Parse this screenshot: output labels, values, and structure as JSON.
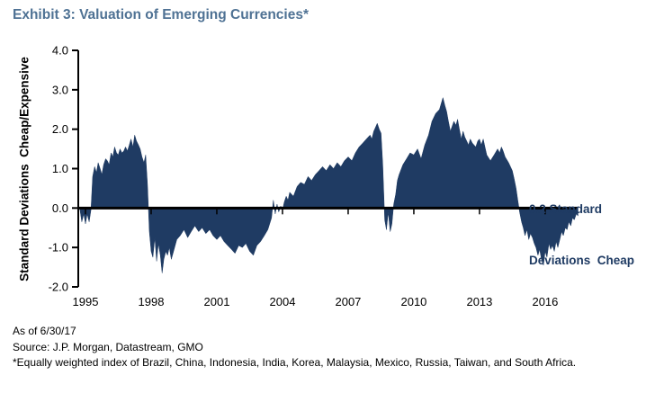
{
  "colors": {
    "title_blue": "#4F7294",
    "series_navy": "#1F3B63",
    "axis_black": "#000000"
  },
  "chart_data": {
    "type": "area",
    "title": "Exhibit 3: Valuation of Emerging Currencies*",
    "xlabel": "",
    "ylabel": "Standard Deviations  Cheap/Expensive",
    "ylim": [
      -2.0,
      4.0
    ],
    "x_ticks": [
      1995,
      1998,
      2001,
      2004,
      2007,
      2010,
      2013,
      2016
    ],
    "y_ticks": [
      4.0,
      3.0,
      2.0,
      1.0,
      0.0,
      -1.0,
      -2.0
    ],
    "y_tick_labels": [
      "4.0",
      "3.0",
      "2.0",
      "1.0",
      "0.0",
      "-1.0",
      "-2.0"
    ],
    "baseline": 0,
    "grid": false,
    "legend": false,
    "x_range": [
      1994.72,
      2017.5
    ],
    "annotation": {
      "line1": "0.2 Standard",
      "line2": "Deviations  Cheap"
    },
    "series": [
      {
        "name": "Valuation of emerging currencies (standard deviations cheap/expensive)",
        "points": [
          [
            1994.75,
            -0.05
          ],
          [
            1994.83,
            -0.35
          ],
          [
            1994.92,
            -0.15
          ],
          [
            1995.0,
            -0.4
          ],
          [
            1995.08,
            -0.15
          ],
          [
            1995.17,
            -0.35
          ],
          [
            1995.25,
            -0.05
          ],
          [
            1995.33,
            0.8
          ],
          [
            1995.42,
            1.05
          ],
          [
            1995.5,
            0.9
          ],
          [
            1995.58,
            1.15
          ],
          [
            1995.67,
            1.0
          ],
          [
            1995.75,
            0.85
          ],
          [
            1995.83,
            1.1
          ],
          [
            1995.92,
            1.25
          ],
          [
            1996.0,
            1.2
          ],
          [
            1996.08,
            1.1
          ],
          [
            1996.17,
            1.4
          ],
          [
            1996.25,
            1.3
          ],
          [
            1996.33,
            1.55
          ],
          [
            1996.42,
            1.4
          ],
          [
            1996.5,
            1.35
          ],
          [
            1996.58,
            1.5
          ],
          [
            1996.67,
            1.4
          ],
          [
            1996.75,
            1.45
          ],
          [
            1996.83,
            1.55
          ],
          [
            1996.92,
            1.45
          ],
          [
            1997.0,
            1.6
          ],
          [
            1997.08,
            1.75
          ],
          [
            1997.17,
            1.55
          ],
          [
            1997.25,
            1.85
          ],
          [
            1997.33,
            1.7
          ],
          [
            1997.42,
            1.6
          ],
          [
            1997.5,
            1.5
          ],
          [
            1997.58,
            1.3
          ],
          [
            1997.67,
            1.15
          ],
          [
            1997.75,
            1.35
          ],
          [
            1997.83,
            0.6
          ],
          [
            1997.92,
            -0.6
          ],
          [
            1998.0,
            -1.1
          ],
          [
            1998.08,
            -1.25
          ],
          [
            1998.17,
            -0.75
          ],
          [
            1998.25,
            -1.35
          ],
          [
            1998.33,
            -0.9
          ],
          [
            1998.42,
            -1.2
          ],
          [
            1998.5,
            -1.65
          ],
          [
            1998.58,
            -1.3
          ],
          [
            1998.67,
            -1.1
          ],
          [
            1998.75,
            -1.2
          ],
          [
            1998.83,
            -1.0
          ],
          [
            1998.92,
            -1.3
          ],
          [
            1999.0,
            -1.15
          ],
          [
            1999.17,
            -0.8
          ],
          [
            1999.33,
            -0.7
          ],
          [
            1999.5,
            -0.55
          ],
          [
            1999.67,
            -0.75
          ],
          [
            1999.83,
            -0.6
          ],
          [
            2000.0,
            -0.45
          ],
          [
            2000.17,
            -0.6
          ],
          [
            2000.33,
            -0.5
          ],
          [
            2000.5,
            -0.65
          ],
          [
            2000.67,
            -0.55
          ],
          [
            2000.83,
            -0.7
          ],
          [
            2001.0,
            -0.8
          ],
          [
            2001.17,
            -0.7
          ],
          [
            2001.33,
            -0.85
          ],
          [
            2001.5,
            -0.95
          ],
          [
            2001.67,
            -1.05
          ],
          [
            2001.83,
            -1.15
          ],
          [
            2002.0,
            -0.95
          ],
          [
            2002.17,
            -1.0
          ],
          [
            2002.33,
            -0.9
          ],
          [
            2002.5,
            -1.1
          ],
          [
            2002.67,
            -1.2
          ],
          [
            2002.83,
            -0.95
          ],
          [
            2003.0,
            -0.85
          ],
          [
            2003.17,
            -0.7
          ],
          [
            2003.33,
            -0.55
          ],
          [
            2003.5,
            -0.25
          ],
          [
            2003.58,
            0.2
          ],
          [
            2003.67,
            -0.15
          ],
          [
            2003.75,
            0.1
          ],
          [
            2003.83,
            -0.1
          ],
          [
            2003.92,
            0.05
          ],
          [
            2004.0,
            -0.05
          ],
          [
            2004.08,
            0.15
          ],
          [
            2004.17,
            0.3
          ],
          [
            2004.25,
            0.2
          ],
          [
            2004.33,
            0.4
          ],
          [
            2004.5,
            0.3
          ],
          [
            2004.67,
            0.55
          ],
          [
            2004.83,
            0.65
          ],
          [
            2005.0,
            0.6
          ],
          [
            2005.17,
            0.8
          ],
          [
            2005.33,
            0.7
          ],
          [
            2005.5,
            0.85
          ],
          [
            2005.67,
            0.95
          ],
          [
            2005.83,
            1.05
          ],
          [
            2006.0,
            0.95
          ],
          [
            2006.17,
            1.1
          ],
          [
            2006.33,
            1.0
          ],
          [
            2006.5,
            1.15
          ],
          [
            2006.67,
            1.05
          ],
          [
            2006.83,
            1.2
          ],
          [
            2007.0,
            1.3
          ],
          [
            2007.17,
            1.2
          ],
          [
            2007.33,
            1.4
          ],
          [
            2007.5,
            1.55
          ],
          [
            2007.67,
            1.65
          ],
          [
            2007.83,
            1.75
          ],
          [
            2008.0,
            1.85
          ],
          [
            2008.08,
            1.75
          ],
          [
            2008.17,
            1.95
          ],
          [
            2008.25,
            2.05
          ],
          [
            2008.33,
            2.15
          ],
          [
            2008.42,
            2.0
          ],
          [
            2008.5,
            1.9
          ],
          [
            2008.58,
            1.1
          ],
          [
            2008.67,
            -0.3
          ],
          [
            2008.75,
            -0.55
          ],
          [
            2008.83,
            -0.1
          ],
          [
            2008.92,
            -0.6
          ],
          [
            2009.0,
            -0.4
          ],
          [
            2009.08,
            0.1
          ],
          [
            2009.17,
            0.35
          ],
          [
            2009.25,
            0.7
          ],
          [
            2009.33,
            0.85
          ],
          [
            2009.5,
            1.1
          ],
          [
            2009.67,
            1.25
          ],
          [
            2009.83,
            1.4
          ],
          [
            2010.0,
            1.35
          ],
          [
            2010.17,
            1.5
          ],
          [
            2010.33,
            1.25
          ],
          [
            2010.5,
            1.6
          ],
          [
            2010.67,
            1.85
          ],
          [
            2010.83,
            2.2
          ],
          [
            2011.0,
            2.4
          ],
          [
            2011.17,
            2.5
          ],
          [
            2011.33,
            2.8
          ],
          [
            2011.42,
            2.6
          ],
          [
            2011.5,
            2.45
          ],
          [
            2011.58,
            2.2
          ],
          [
            2011.67,
            1.95
          ],
          [
            2011.83,
            2.2
          ],
          [
            2011.92,
            2.1
          ],
          [
            2012.0,
            2.25
          ],
          [
            2012.08,
            2.0
          ],
          [
            2012.17,
            1.75
          ],
          [
            2012.25,
            1.95
          ],
          [
            2012.33,
            1.8
          ],
          [
            2012.5,
            1.6
          ],
          [
            2012.58,
            1.75
          ],
          [
            2012.67,
            1.65
          ],
          [
            2012.83,
            1.55
          ],
          [
            2012.92,
            1.7
          ],
          [
            2013.0,
            1.75
          ],
          [
            2013.08,
            1.6
          ],
          [
            2013.17,
            1.75
          ],
          [
            2013.25,
            1.55
          ],
          [
            2013.33,
            1.35
          ],
          [
            2013.5,
            1.2
          ],
          [
            2013.67,
            1.35
          ],
          [
            2013.83,
            1.5
          ],
          [
            2013.92,
            1.4
          ],
          [
            2014.0,
            1.55
          ],
          [
            2014.08,
            1.45
          ],
          [
            2014.17,
            1.3
          ],
          [
            2014.33,
            1.15
          ],
          [
            2014.5,
            0.95
          ],
          [
            2014.58,
            0.75
          ],
          [
            2014.67,
            0.5
          ],
          [
            2014.75,
            0.2
          ],
          [
            2014.83,
            -0.1
          ],
          [
            2014.92,
            -0.35
          ],
          [
            2015.0,
            -0.5
          ],
          [
            2015.08,
            -0.7
          ],
          [
            2015.17,
            -0.55
          ],
          [
            2015.25,
            -0.8
          ],
          [
            2015.33,
            -0.65
          ],
          [
            2015.42,
            -0.75
          ],
          [
            2015.5,
            -0.9
          ],
          [
            2015.58,
            -1.0
          ],
          [
            2015.67,
            -1.2
          ],
          [
            2015.75,
            -1.05
          ],
          [
            2015.83,
            -1.3
          ],
          [
            2015.92,
            -1.45
          ],
          [
            2016.0,
            -1.1
          ],
          [
            2016.08,
            -1.25
          ],
          [
            2016.17,
            -0.9
          ],
          [
            2016.25,
            -1.05
          ],
          [
            2016.33,
            -0.95
          ],
          [
            2016.42,
            -1.1
          ],
          [
            2016.5,
            -0.85
          ],
          [
            2016.58,
            -1.0
          ],
          [
            2016.67,
            -0.8
          ],
          [
            2016.75,
            -0.6
          ],
          [
            2016.83,
            -0.7
          ],
          [
            2016.92,
            -0.5
          ],
          [
            2017.0,
            -0.55
          ],
          [
            2017.08,
            -0.35
          ],
          [
            2017.17,
            -0.45
          ],
          [
            2017.25,
            -0.25
          ],
          [
            2017.33,
            -0.3
          ],
          [
            2017.42,
            -0.15
          ],
          [
            2017.5,
            -0.2
          ]
        ]
      }
    ]
  },
  "footer": {
    "as_of": "As of 6/30/17",
    "source": "Source: J.P. Morgan, Datastream, GMO",
    "footnote": "*Equally weighted index of Brazil, China, Indonesia, India, Korea, Malaysia, Mexico, Russia, Taiwan, and South Africa."
  }
}
